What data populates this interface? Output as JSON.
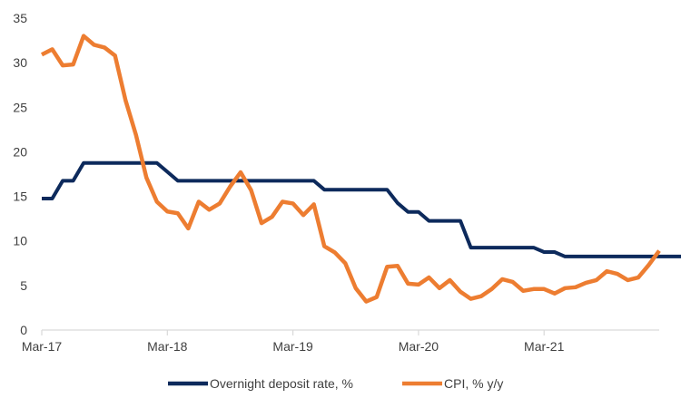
{
  "chart_data": {
    "type": "line",
    "title": "",
    "xlabel": "",
    "ylabel": "",
    "ylim": [
      0,
      35
    ],
    "yticks": [
      0,
      5,
      10,
      15,
      20,
      25,
      30,
      35
    ],
    "x_start": "Mar-17",
    "x_end": "Dec-21",
    "xtick_labels": [
      "Mar-17",
      "Mar-18",
      "Mar-19",
      "Mar-20",
      "Mar-21"
    ],
    "grid": false,
    "legend_position": "bottom",
    "series": [
      {
        "name": "Overnight deposit rate, %",
        "color": "#0d2a5c",
        "values": [
          14.75,
          14.75,
          16.75,
          16.75,
          18.75,
          18.75,
          18.75,
          18.75,
          18.75,
          18.75,
          18.75,
          18.75,
          17.75,
          16.75,
          16.75,
          16.75,
          16.75,
          16.75,
          16.75,
          16.75,
          16.75,
          16.75,
          16.75,
          16.75,
          16.75,
          16.75,
          16.75,
          15.75,
          15.75,
          15.75,
          15.75,
          15.75,
          15.75,
          15.75,
          14.25,
          13.25,
          13.25,
          12.25,
          12.25,
          12.25,
          12.25,
          9.25,
          9.25,
          9.25,
          9.25,
          9.25,
          9.25,
          9.25,
          8.75,
          8.75,
          8.25,
          8.25,
          8.25,
          8.25,
          8.25,
          8.25,
          8.25,
          8.25,
          8.25,
          8.25,
          8.25,
          8.25,
          8.25,
          8.25,
          8.25,
          8.25,
          8.25,
          8.25,
          9.25
        ]
      },
      {
        "name": "CPI, % y/y",
        "color": "#ed7d31",
        "values": [
          30.9,
          31.5,
          29.7,
          29.8,
          33.0,
          32.0,
          31.7,
          30.8,
          25.8,
          21.9,
          17.1,
          14.4,
          13.3,
          13.1,
          11.4,
          14.4,
          13.5,
          14.2,
          16.1,
          17.7,
          15.7,
          12.0,
          12.7,
          14.4,
          14.2,
          12.9,
          14.1,
          9.4,
          8.7,
          7.5,
          4.7,
          3.2,
          3.7,
          7.1,
          7.2,
          5.2,
          5.1,
          5.9,
          4.7,
          5.6,
          4.3,
          3.5,
          3.8,
          4.6,
          5.7,
          5.4,
          4.4,
          4.6,
          4.6,
          4.1,
          4.7,
          4.8,
          5.3,
          5.6,
          6.6,
          6.3,
          5.6,
          5.9,
          7.3,
          8.9
        ]
      }
    ]
  }
}
